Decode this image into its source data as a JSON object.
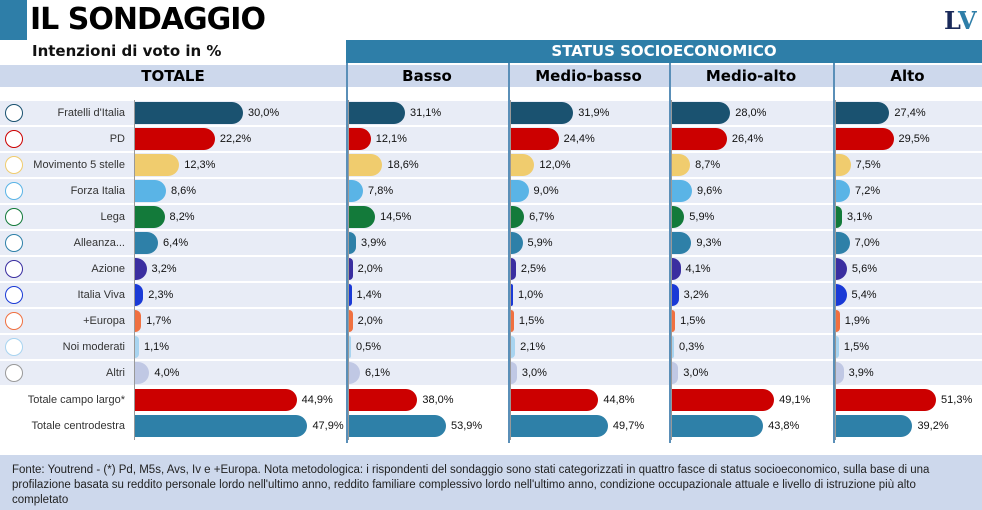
{
  "header": {
    "title": "IL SONDAGGIO",
    "subtitle": "Intenzioni di voto in %",
    "logo": "LV",
    "status_label": "STATUS SOCIOECONOMICO"
  },
  "chart_data": {
    "type": "bar",
    "orientation": "horizontal",
    "categories": [
      "Fratelli d'Italia",
      "PD",
      "Movimento 5 stelle",
      "Forza Italia",
      "Lega",
      "Alleanza...",
      "Azione",
      "Italia Viva",
      "+Europa",
      "Noi moderati",
      "Altri",
      "Totale campo largo*",
      "Totale centrodestra"
    ],
    "colors": [
      "#1a5270",
      "#cc0000",
      "#f0cc6e",
      "#5ab4e6",
      "#137a3a",
      "#2e80a8",
      "#3a2ea0",
      "#1a3ad6",
      "#f07040",
      "#a8d4f0",
      "#c0c8e4",
      "#cc0000",
      "#2e80a8"
    ],
    "panels": [
      {
        "name": "TOTALE",
        "values": [
          30.0,
          22.2,
          12.3,
          8.6,
          8.2,
          6.4,
          3.2,
          2.3,
          1.7,
          1.1,
          4.0,
          44.9,
          47.9
        ],
        "labels": [
          "30,0%",
          "22,2%",
          "12,3%",
          "8,6%",
          "8,2%",
          "6,4%",
          "3,2%",
          "2,3%",
          "1,7%",
          "1,1%",
          "4,0%",
          "44,9%",
          "47,9%"
        ]
      },
      {
        "name": "Basso",
        "values": [
          31.1,
          12.1,
          18.6,
          7.8,
          14.5,
          3.9,
          2.0,
          1.4,
          2.0,
          0.5,
          6.1,
          38.0,
          53.9
        ],
        "labels": [
          "31,1%",
          "12,1%",
          "18,6%",
          "7,8%",
          "14,5%",
          "3,9%",
          "2,0%",
          "1,4%",
          "2,0%",
          "0,5%",
          "6,1%",
          "38,0%",
          "53,9%"
        ]
      },
      {
        "name": "Medio-basso",
        "values": [
          31.9,
          24.4,
          12.0,
          9.0,
          6.7,
          5.9,
          2.5,
          1.0,
          1.5,
          2.1,
          3.0,
          44.8,
          49.7
        ],
        "labels": [
          "31,9%",
          "24,4%",
          "12,0%",
          "9,0%",
          "6,7%",
          "5,9%",
          "2,5%",
          "1,0%",
          "1,5%",
          "2,1%",
          "3,0%",
          "44,8%",
          "49,7%"
        ]
      },
      {
        "name": "Medio-alto",
        "values": [
          28.0,
          26.4,
          8.7,
          9.6,
          5.9,
          9.3,
          4.1,
          3.2,
          1.5,
          0.3,
          3.0,
          49.1,
          43.8
        ],
        "labels": [
          "28,0%",
          "26,4%",
          "8,7%",
          "9,6%",
          "5,9%",
          "9,3%",
          "4,1%",
          "3,2%",
          "1,5%",
          "0,3%",
          "3,0%",
          "49,1%",
          "43,8%"
        ]
      },
      {
        "name": "Alto",
        "values": [
          27.4,
          29.5,
          7.5,
          7.2,
          3.1,
          7.0,
          5.6,
          5.4,
          1.9,
          1.5,
          3.9,
          51.3,
          39.2
        ],
        "labels": [
          "27,4%",
          "29,5%",
          "7,5%",
          "7,2%",
          "3,1%",
          "7,0%",
          "5,6%",
          "5,4%",
          "1,9%",
          "1,5%",
          "3,9%",
          "51,3%",
          "39,2%"
        ]
      }
    ]
  },
  "footer": {
    "note": "Fonte: Youtrend - (*) Pd, M5s, Avs, Iv e +Europa. Nota metodologica: i rispondenti del sondaggio sono stati categorizzati in quattro fasce di status socioeconomico, sulla base di una profilazione basata su reddito personale lordo nell'ultimo anno, reddito familiare complessivo lordo nell'ultimo anno, condizione occupazionale attuale e livello di istruzione più alto completato"
  }
}
